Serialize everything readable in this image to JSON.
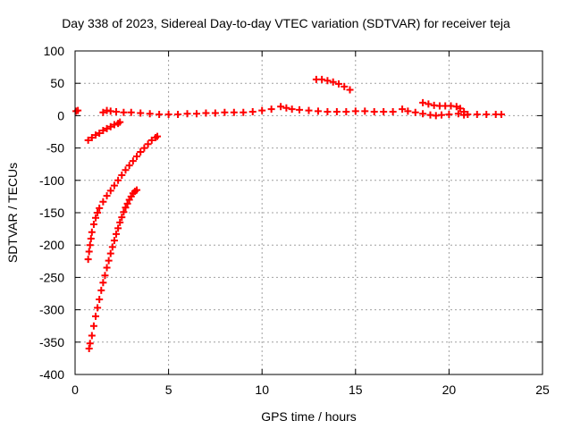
{
  "chart_data": {
    "type": "scatter",
    "title": "Day 338 of 2023, Sidereal Day-to-day VTEC variation (SDTVAR) for receiver teja",
    "xlabel": "GPS time / hours",
    "ylabel": "SDTVAR / TECUs",
    "xlim": [
      0,
      25
    ],
    "ylim": [
      -400,
      100
    ],
    "x_ticks": [
      0,
      5,
      10,
      15,
      20,
      25
    ],
    "y_ticks": [
      100,
      50,
      0,
      -50,
      -100,
      -150,
      -200,
      -250,
      -300,
      -350,
      -400
    ],
    "grid": true,
    "legend": "none",
    "marker": "+",
    "color": "#ff0000",
    "series": [
      {
        "points": [
          [
            0.05,
            7
          ],
          [
            0.15,
            8
          ]
        ]
      },
      {
        "points": [
          [
            0.7,
            -38
          ],
          [
            0.9,
            -34
          ],
          [
            1.1,
            -30
          ],
          [
            1.3,
            -27
          ],
          [
            1.5,
            -23
          ],
          [
            1.7,
            -20
          ],
          [
            1.9,
            -17
          ],
          [
            2.1,
            -14
          ],
          [
            2.3,
            -12
          ],
          [
            2.4,
            -10
          ]
        ]
      },
      {
        "points": [
          [
            1.5,
            5
          ],
          [
            1.7,
            8
          ],
          [
            1.9,
            7
          ],
          [
            2.2,
            6
          ],
          [
            2.6,
            5
          ],
          [
            3.0,
            5
          ],
          [
            3.5,
            4
          ],
          [
            4.0,
            3
          ],
          [
            4.5,
            2
          ],
          [
            5.0,
            2
          ],
          [
            5.5,
            2
          ],
          [
            6.0,
            3
          ],
          [
            6.5,
            3
          ],
          [
            7.0,
            4
          ],
          [
            7.5,
            4
          ],
          [
            8.0,
            5
          ],
          [
            8.5,
            5
          ],
          [
            9.0,
            5
          ],
          [
            9.5,
            6
          ],
          [
            10.0,
            8
          ],
          [
            10.5,
            10
          ],
          [
            11.0,
            14
          ],
          [
            11.3,
            12
          ],
          [
            11.6,
            10
          ],
          [
            12.0,
            9
          ],
          [
            12.5,
            8
          ],
          [
            13.0,
            7
          ],
          [
            13.5,
            6
          ],
          [
            14.0,
            6
          ],
          [
            14.5,
            6
          ],
          [
            15.0,
            7
          ],
          [
            15.5,
            7
          ],
          [
            16.0,
            6
          ],
          [
            16.5,
            6
          ],
          [
            17.0,
            6
          ],
          [
            17.5,
            10
          ],
          [
            17.8,
            7
          ],
          [
            18.2,
            5
          ],
          [
            18.6,
            3
          ],
          [
            19.0,
            1
          ],
          [
            19.3,
            0
          ],
          [
            19.6,
            1
          ],
          [
            20.0,
            2
          ],
          [
            20.5,
            3
          ],
          [
            20.8,
            1
          ],
          [
            21.0,
            2
          ],
          [
            21.5,
            2
          ],
          [
            22.0,
            2
          ],
          [
            22.5,
            2
          ],
          [
            22.8,
            2
          ]
        ]
      },
      {
        "points": [
          [
            12.9,
            56
          ],
          [
            13.2,
            56
          ],
          [
            13.5,
            54
          ],
          [
            13.8,
            52
          ],
          [
            14.1,
            49
          ],
          [
            14.4,
            45
          ],
          [
            14.7,
            40
          ]
        ]
      },
      {
        "points": [
          [
            18.6,
            20
          ],
          [
            18.9,
            18
          ],
          [
            19.2,
            16
          ],
          [
            19.5,
            15
          ],
          [
            19.8,
            15
          ],
          [
            20.1,
            15
          ],
          [
            20.4,
            14
          ],
          [
            20.6,
            11
          ],
          [
            20.8,
            6
          ]
        ]
      },
      {
        "points": [
          [
            0.7,
            -222
          ],
          [
            0.75,
            -210
          ],
          [
            0.8,
            -200
          ],
          [
            0.85,
            -190
          ],
          [
            0.9,
            -180
          ],
          [
            1.0,
            -168
          ],
          [
            1.1,
            -158
          ],
          [
            1.2,
            -150
          ],
          [
            1.3,
            -143
          ],
          [
            1.5,
            -133
          ],
          [
            1.7,
            -124
          ],
          [
            1.9,
            -116
          ],
          [
            2.1,
            -108
          ],
          [
            2.3,
            -100
          ],
          [
            2.5,
            -92
          ],
          [
            2.7,
            -84
          ],
          [
            2.9,
            -77
          ],
          [
            3.1,
            -70
          ],
          [
            3.3,
            -63
          ],
          [
            3.5,
            -56
          ],
          [
            3.7,
            -50
          ],
          [
            3.9,
            -44
          ],
          [
            4.1,
            -38
          ],
          [
            4.3,
            -34
          ],
          [
            4.4,
            -32
          ]
        ]
      },
      {
        "points": [
          [
            0.75,
            -360
          ],
          [
            0.8,
            -352
          ],
          [
            0.9,
            -340
          ],
          [
            1.0,
            -325
          ],
          [
            1.1,
            -310
          ],
          [
            1.2,
            -297
          ],
          [
            1.3,
            -284
          ],
          [
            1.4,
            -270
          ],
          [
            1.5,
            -258
          ],
          [
            1.6,
            -247
          ],
          [
            1.7,
            -235
          ],
          [
            1.8,
            -224
          ],
          [
            1.9,
            -213
          ],
          [
            2.0,
            -203
          ],
          [
            2.1,
            -193
          ],
          [
            2.2,
            -183
          ],
          [
            2.3,
            -174
          ],
          [
            2.4,
            -165
          ],
          [
            2.5,
            -157
          ],
          [
            2.6,
            -149
          ],
          [
            2.7,
            -142
          ],
          [
            2.8,
            -136
          ],
          [
            2.9,
            -130
          ],
          [
            3.0,
            -125
          ],
          [
            3.1,
            -120
          ],
          [
            3.2,
            -117
          ],
          [
            3.3,
            -115
          ]
        ]
      }
    ]
  }
}
